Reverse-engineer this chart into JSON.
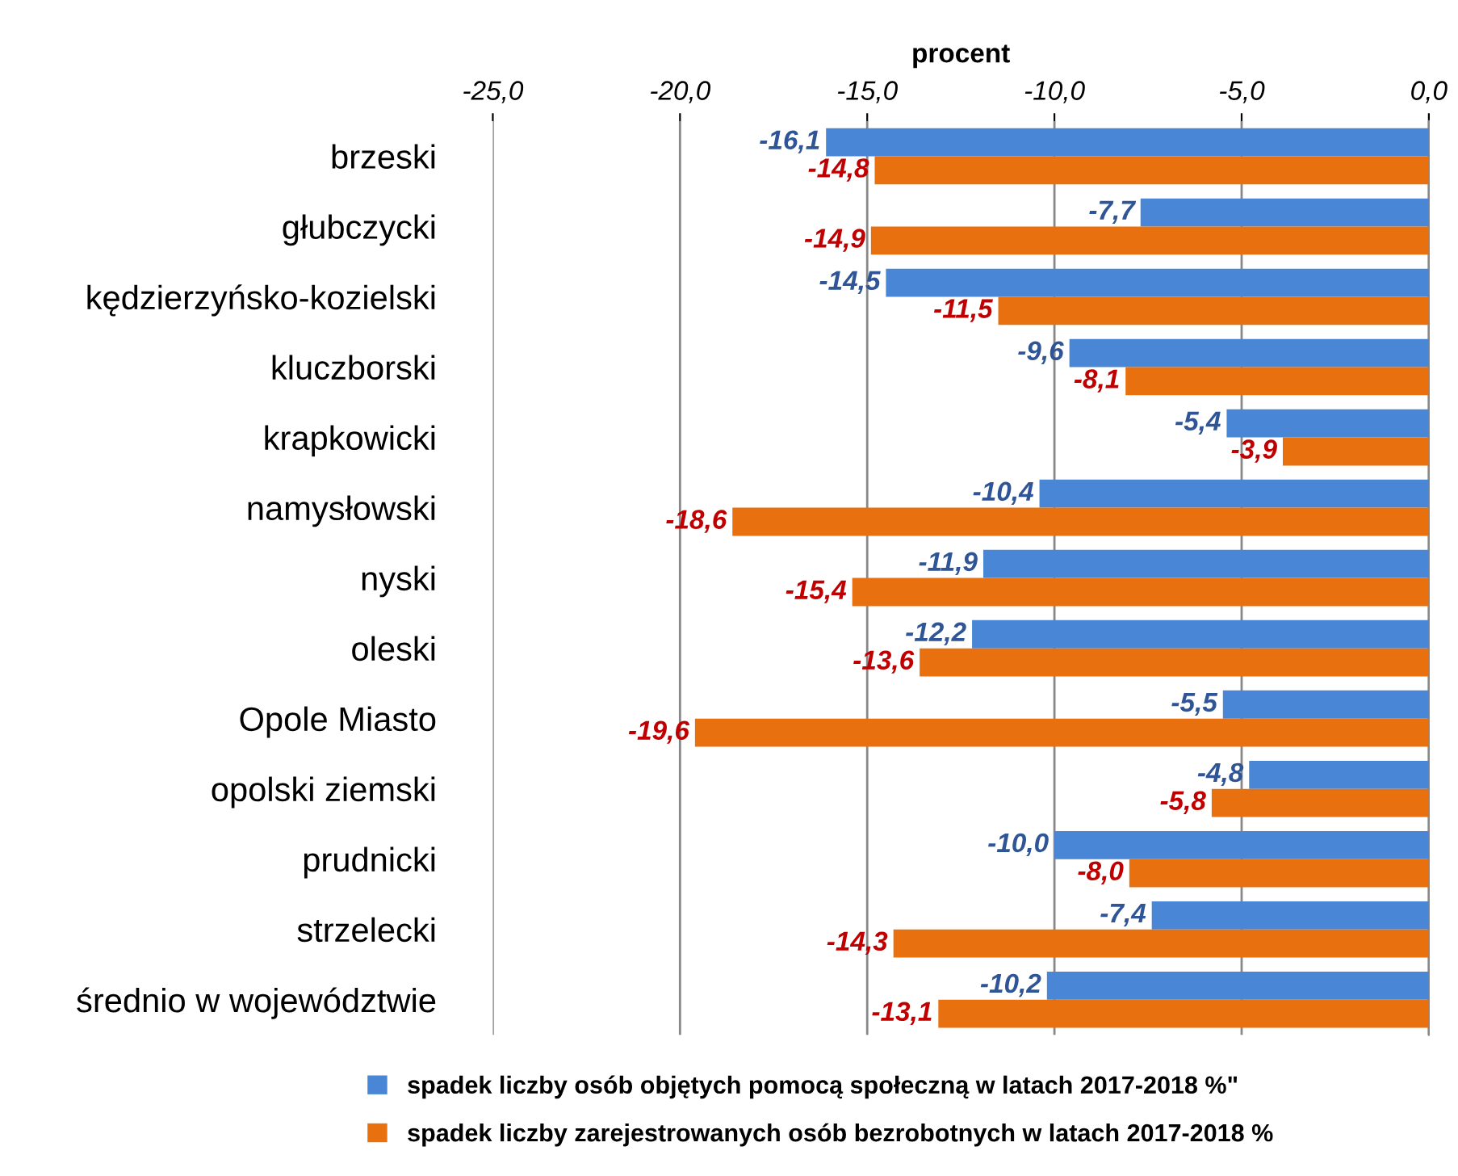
{
  "chart_data": {
    "type": "bar",
    "orientation": "horizontal",
    "xlabel": "procent",
    "categories": [
      "brzeski",
      "głubczycki",
      "kędzierzyńsko-kozielski",
      "kluczborski",
      "krapkowicki",
      "namysłowski",
      "nyski",
      "oleski",
      "Opole Miasto",
      "opolski ziemski",
      "prudnicki",
      "strzelecki",
      "średnio w województwie"
    ],
    "series": [
      {
        "name": "spadek liczby osób objętych pomocą społeczną w latach 2017-2018 %\"",
        "color": "#4a86d6",
        "values": [
          -16.1,
          -7.7,
          -14.5,
          -9.6,
          -5.4,
          -10.4,
          -11.9,
          -12.2,
          -5.5,
          -4.8,
          -10.0,
          -7.4,
          -10.2
        ],
        "value_labels": [
          "-16,1",
          "-7,7",
          "-14,5",
          "-9,6",
          "-5,4",
          "-10,4",
          "-11,9",
          "-12,2",
          "-5,5",
          "-4,8",
          "-10,0",
          "-7,4",
          "-10,2"
        ]
      },
      {
        "name": "spadek liczby zarejestrowanych osób bezrobotnych w latach 2017-2018 %",
        "color": "#e8700e",
        "values": [
          -14.8,
          -14.9,
          -11.5,
          -8.1,
          -3.9,
          -18.6,
          -15.4,
          -13.6,
          -19.6,
          -5.8,
          -8.0,
          -14.3,
          -13.1
        ],
        "value_labels": [
          "-14,8",
          "-14,9",
          "-11,5",
          "-8,1",
          "-3,9",
          "-18,6",
          "-15,4",
          "-13,6",
          "-19,6",
          "-5,8",
          "-8,0",
          "-14,3",
          "-13,1"
        ]
      }
    ],
    "xlim": [
      -25,
      0
    ],
    "xticks": [
      {
        "value": -25,
        "label": "-25,0"
      },
      {
        "value": -20,
        "label": "-20,0"
      },
      {
        "value": -15,
        "label": "-15,0"
      },
      {
        "value": -10,
        "label": "-10,0"
      },
      {
        "value": -5,
        "label": "-5,0"
      },
      {
        "value": 0,
        "label": "0,0"
      }
    ],
    "grid": "x",
    "legend": "bottom"
  }
}
